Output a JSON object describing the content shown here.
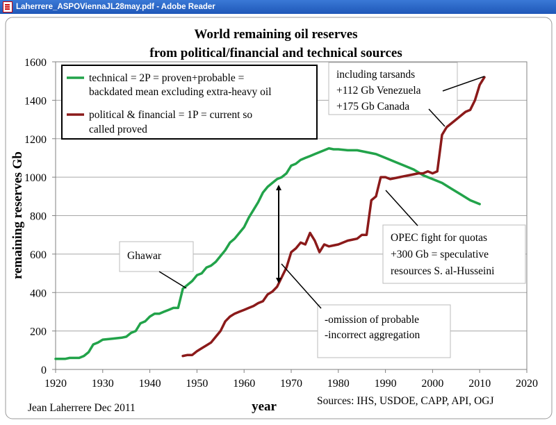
{
  "window": {
    "title": "Laherrere_ASPOViennaJL28may.pdf - Adobe Reader",
    "icon": "pdf-document-icon"
  },
  "chart_data": {
    "type": "line",
    "title_lines": [
      "World remaining oil reserves",
      "from political/financial and technical sources"
    ],
    "xlabel": "year",
    "ylabel": "remaining reserves Gb",
    "xlim": [
      1920,
      2020
    ],
    "ylim": [
      0,
      1600
    ],
    "x_ticks": [
      1920,
      1930,
      1940,
      1950,
      1960,
      1970,
      1980,
      1990,
      2000,
      2010,
      2020
    ],
    "y_ticks": [
      0,
      200,
      400,
      600,
      800,
      1000,
      1200,
      1400,
      1600
    ],
    "grid": true,
    "legend": [
      {
        "lines": [
          "technical = 2P = proven+probable =",
          "backdated mean excluding extra-heavy oil"
        ],
        "color": "#22a34a"
      },
      {
        "lines": [
          "political & financial = 1P = current so",
          "called proved"
        ],
        "color": "#8b1a1a"
      }
    ],
    "series": [
      {
        "color": "#22a34a",
        "points": [
          [
            1920,
            55
          ],
          [
            1922,
            55
          ],
          [
            1923,
            60
          ],
          [
            1925,
            60
          ],
          [
            1926,
            70
          ],
          [
            1927,
            90
          ],
          [
            1928,
            130
          ],
          [
            1929,
            140
          ],
          [
            1930,
            155
          ],
          [
            1932,
            160
          ],
          [
            1934,
            165
          ],
          [
            1935,
            170
          ],
          [
            1936,
            190
          ],
          [
            1937,
            200
          ],
          [
            1938,
            240
          ],
          [
            1939,
            250
          ],
          [
            1940,
            275
          ],
          [
            1941,
            290
          ],
          [
            1942,
            290
          ],
          [
            1943,
            300
          ],
          [
            1944,
            310
          ],
          [
            1945,
            320
          ],
          [
            1946,
            320
          ],
          [
            1947,
            420
          ],
          [
            1948,
            440
          ],
          [
            1949,
            460
          ],
          [
            1950,
            490
          ],
          [
            1951,
            500
          ],
          [
            1952,
            530
          ],
          [
            1953,
            540
          ],
          [
            1954,
            560
          ],
          [
            1955,
            590
          ],
          [
            1956,
            620
          ],
          [
            1957,
            660
          ],
          [
            1958,
            680
          ],
          [
            1959,
            710
          ],
          [
            1960,
            740
          ],
          [
            1961,
            790
          ],
          [
            1962,
            830
          ],
          [
            1963,
            870
          ],
          [
            1964,
            920
          ],
          [
            1965,
            950
          ],
          [
            1966,
            970
          ],
          [
            1967,
            990
          ],
          [
            1968,
            1000
          ],
          [
            1969,
            1020
          ],
          [
            1970,
            1060
          ],
          [
            1971,
            1070
          ],
          [
            1972,
            1090
          ],
          [
            1973,
            1100
          ],
          [
            1974,
            1110
          ],
          [
            1975,
            1120
          ],
          [
            1976,
            1130
          ],
          [
            1977,
            1140
          ],
          [
            1978,
            1150
          ],
          [
            1979,
            1145
          ],
          [
            1980,
            1145
          ],
          [
            1982,
            1140
          ],
          [
            1984,
            1140
          ],
          [
            1986,
            1130
          ],
          [
            1988,
            1120
          ],
          [
            1990,
            1100
          ],
          [
            1992,
            1080
          ],
          [
            1994,
            1060
          ],
          [
            1996,
            1040
          ],
          [
            1998,
            1010
          ],
          [
            2000,
            990
          ],
          [
            2002,
            970
          ],
          [
            2004,
            940
          ],
          [
            2006,
            910
          ],
          [
            2008,
            880
          ],
          [
            2010,
            860
          ]
        ]
      },
      {
        "color": "#8b1a1a",
        "points": [
          [
            1947,
            70
          ],
          [
            1948,
            75
          ],
          [
            1949,
            75
          ],
          [
            1950,
            95
          ],
          [
            1951,
            110
          ],
          [
            1952,
            125
          ],
          [
            1953,
            140
          ],
          [
            1954,
            170
          ],
          [
            1955,
            200
          ],
          [
            1956,
            250
          ],
          [
            1957,
            275
          ],
          [
            1958,
            290
          ],
          [
            1959,
            300
          ],
          [
            1960,
            310
          ],
          [
            1961,
            320
          ],
          [
            1962,
            330
          ],
          [
            1963,
            345
          ],
          [
            1964,
            355
          ],
          [
            1965,
            390
          ],
          [
            1966,
            405
          ],
          [
            1967,
            430
          ],
          [
            1968,
            480
          ],
          [
            1969,
            530
          ],
          [
            1970,
            610
          ],
          [
            1971,
            630
          ],
          [
            1972,
            660
          ],
          [
            1973,
            650
          ],
          [
            1974,
            710
          ],
          [
            1975,
            670
          ],
          [
            1976,
            610
          ],
          [
            1977,
            650
          ],
          [
            1978,
            640
          ],
          [
            1979,
            645
          ],
          [
            1980,
            650
          ],
          [
            1981,
            660
          ],
          [
            1982,
            670
          ],
          [
            1983,
            675
          ],
          [
            1984,
            680
          ],
          [
            1985,
            700
          ],
          [
            1986,
            700
          ],
          [
            1987,
            880
          ],
          [
            1988,
            900
          ],
          [
            1989,
            1000
          ],
          [
            1990,
            1000
          ],
          [
            1991,
            990
          ],
          [
            1992,
            995
          ],
          [
            1993,
            1000
          ],
          [
            1994,
            1005
          ],
          [
            1995,
            1010
          ],
          [
            1996,
            1015
          ],
          [
            1997,
            1020
          ],
          [
            1998,
            1020
          ],
          [
            1999,
            1030
          ],
          [
            2000,
            1020
          ],
          [
            2001,
            1030
          ],
          [
            2002,
            1220
          ],
          [
            2003,
            1260
          ],
          [
            2004,
            1280
          ],
          [
            2005,
            1300
          ],
          [
            2006,
            1320
          ],
          [
            2007,
            1340
          ],
          [
            2008,
            1350
          ],
          [
            2009,
            1400
          ],
          [
            2010,
            1480
          ],
          [
            2011,
            1520
          ]
        ]
      }
    ],
    "annotations": [
      {
        "id": "ghawar",
        "lines": [
          "Ghawar"
        ]
      },
      {
        "id": "tarsands",
        "lines": [
          "including tarsands",
          "+112 Gb Venezuela",
          "+175 Gb Canada"
        ]
      },
      {
        "id": "opec",
        "lines": [
          "OPEC fight for quotas",
          "+300 Gb = speculative",
          "resources S. al-Husseini"
        ]
      },
      {
        "id": "omission",
        "lines": [
          "-omission of probable",
          "-incorrect aggregation"
        ]
      }
    ],
    "author": "Jean Laherrere Dec 2011",
    "sources": "Sources: IHS, USDOE, CAPP, API, OGJ"
  }
}
